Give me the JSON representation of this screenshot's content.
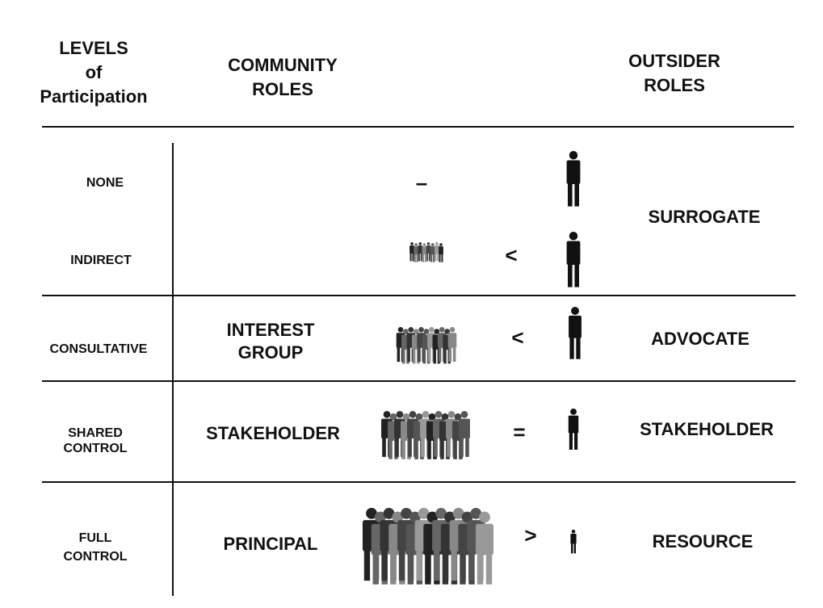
{
  "header": {
    "levels": [
      "LEVELS",
      "of",
      "Participation"
    ],
    "community": [
      "COMMUNITY",
      "ROLES"
    ],
    "outsider": [
      "OUTSIDER",
      "ROLES"
    ]
  },
  "rows": [
    {
      "level": [
        "NONE"
      ],
      "symbol": "–",
      "outsider": "SURROGATE"
    },
    {
      "level": [
        "INDIRECT"
      ],
      "symbol": "<"
    },
    {
      "level": [
        "CONSULTATIVE"
      ],
      "community": [
        "INTEREST",
        "GROUP"
      ],
      "symbol": "<",
      "outsider": "ADVOCATE"
    },
    {
      "level": [
        "SHARED",
        "CONTROL"
      ],
      "community": [
        "STAKEHOLDER"
      ],
      "symbol": "=",
      "outsider": "STAKEHOLDER"
    },
    {
      "level": [
        "FULL",
        "CONTROL"
      ],
      "community": [
        "PRINCIPAL"
      ],
      "symbol": ">",
      "outsider": "RESOURCE"
    }
  ]
}
